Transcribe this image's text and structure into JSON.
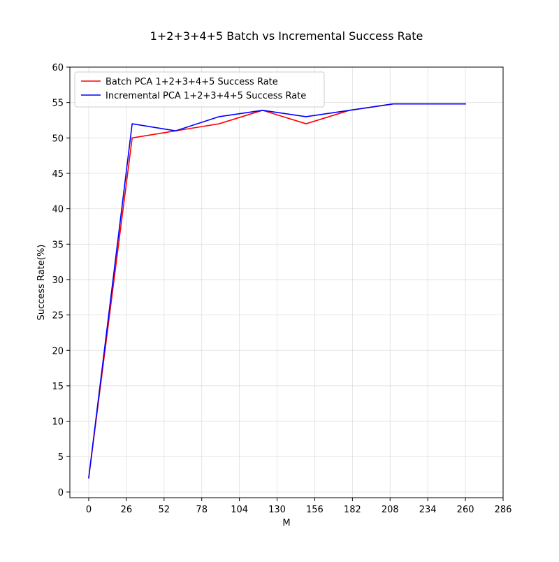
{
  "chart_data": {
    "type": "line",
    "title": "1+2+3+4+5 Batch vs Incremental Success Rate",
    "xlabel": "M",
    "ylabel": "Success Rate(%)",
    "xlim": [
      -13,
      286
    ],
    "ylim": [
      -0.8,
      60
    ],
    "x_ticks": [
      0,
      26,
      52,
      78,
      104,
      130,
      156,
      182,
      208,
      234,
      260,
      286
    ],
    "y_ticks": [
      0,
      5,
      10,
      15,
      20,
      25,
      30,
      35,
      40,
      45,
      50,
      55,
      60
    ],
    "grid": true,
    "legend_position": "top-left",
    "x": [
      0,
      30,
      60,
      90,
      120,
      150,
      180,
      210,
      240,
      260
    ],
    "series": [
      {
        "name": "Batch PCA 1+2+3+4+5 Success Rate",
        "color": "#ff0000",
        "values": [
          2,
          50,
          51,
          52,
          53.9,
          52,
          53.9,
          54.8,
          54.8,
          54.8
        ]
      },
      {
        "name": "Incremental PCA 1+2+3+4+5 Success Rate",
        "color": "#0000ff",
        "values": [
          2,
          52,
          51,
          53,
          53.9,
          53,
          53.9,
          54.8,
          54.8,
          54.8
        ]
      }
    ]
  }
}
